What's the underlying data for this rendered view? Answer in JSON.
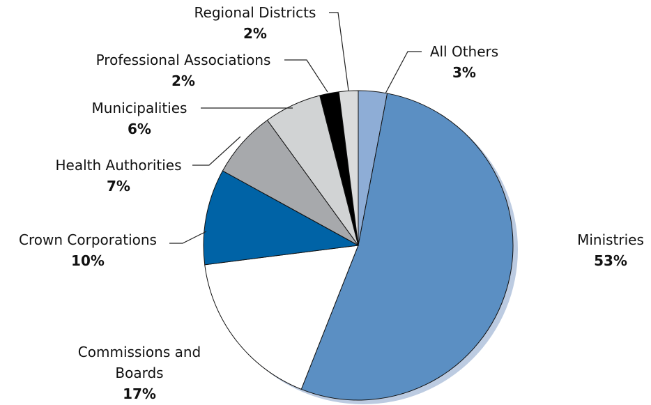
{
  "chart_data": {
    "type": "pie",
    "categories": [
      "All Others",
      "Ministries",
      "Commissions and Boards",
      "Crown Corporations",
      "Health Authorities",
      "Municipalities",
      "Professional Associations",
      "Regional Districts"
    ],
    "values": [
      3,
      53,
      17,
      10,
      7,
      6,
      2,
      2
    ],
    "value_labels": [
      "3%",
      "53%",
      "17%",
      "10%",
      "7%",
      "6%",
      "2%",
      "2%"
    ],
    "colors": [
      "#8eadd6",
      "#5b8fc3",
      "#ffffff",
      "#0063a6",
      "#a7a9ac",
      "#d1d3d4",
      "#000000",
      "#dadbdc"
    ]
  }
}
